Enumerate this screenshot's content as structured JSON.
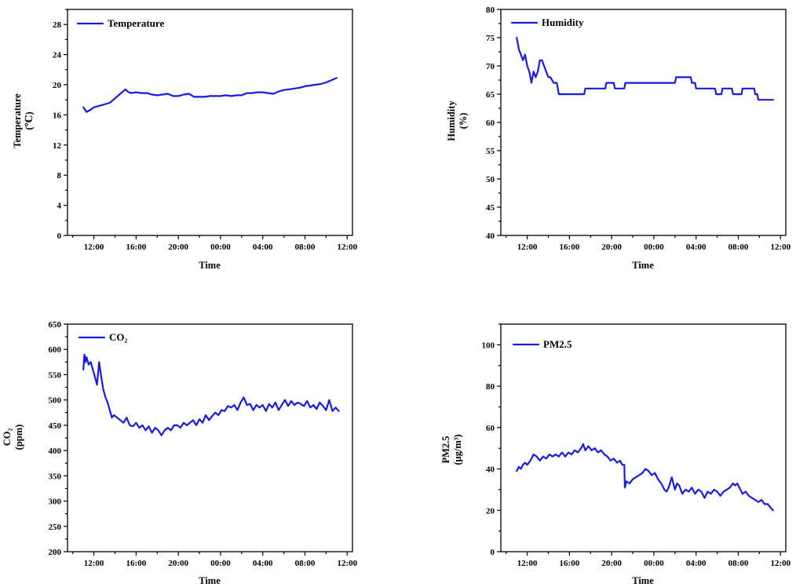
{
  "chart_data": [
    {
      "type": "line",
      "xlabel": "Time",
      "ylabel": [
        "Temperature",
        "(℃)"
      ],
      "ylim": [
        0,
        30
      ],
      "yticks": [
        0,
        4,
        8,
        12,
        16,
        20,
        24,
        28
      ],
      "xticks": [
        "12:00",
        "16:00",
        "20:00",
        "00:00",
        "04:00",
        "08:00",
        "12:00"
      ],
      "xlim": [
        9.5,
        36.5
      ],
      "legend": {
        "position": "top-left",
        "label": "Temperature"
      },
      "color": "#1a1ae6",
      "series": [
        {
          "name": "Temperature",
          "x": [
            11,
            11.3,
            11.6,
            12,
            12.5,
            13,
            13.5,
            14,
            14.5,
            15,
            15.2,
            15.5,
            16,
            16.5,
            17,
            17.5,
            18,
            18.5,
            19,
            19.5,
            20,
            20.5,
            21,
            21.5,
            22,
            22.5,
            23,
            23.5,
            24,
            24.5,
            25,
            25.5,
            26,
            26.5,
            27,
            27.5,
            28,
            28.5,
            29,
            29.5,
            30,
            30.5,
            31,
            31.5,
            32,
            32.5,
            33,
            33.5,
            34,
            34.5,
            35
          ],
          "y": [
            17.0,
            16.4,
            16.6,
            17.0,
            17.2,
            17.4,
            17.6,
            18.2,
            18.8,
            19.4,
            19.1,
            18.9,
            19.0,
            18.9,
            18.9,
            18.7,
            18.6,
            18.7,
            18.8,
            18.5,
            18.5,
            18.7,
            18.8,
            18.4,
            18.4,
            18.4,
            18.5,
            18.5,
            18.5,
            18.6,
            18.5,
            18.6,
            18.6,
            18.9,
            18.9,
            19.0,
            19.0,
            18.9,
            18.8,
            19.1,
            19.3,
            19.4,
            19.5,
            19.6,
            19.8,
            19.9,
            20.0,
            20.1,
            20.3,
            20.6,
            20.9
          ]
        }
      ]
    },
    {
      "type": "line",
      "xlabel": "Time",
      "ylabel": [
        "Humidity",
        "(%)"
      ],
      "ylim": [
        40,
        80
      ],
      "yticks": [
        40,
        45,
        50,
        55,
        60,
        65,
        70,
        75,
        80
      ],
      "xticks": [
        "12:00",
        "16:00",
        "20:00",
        "00:00",
        "04:00",
        "08:00",
        "12:00"
      ],
      "xlim": [
        9.5,
        36.5
      ],
      "legend": {
        "position": "top-left",
        "label": "Humidity"
      },
      "color": "#1a1ae6",
      "series": [
        {
          "name": "Humidity",
          "x": [
            11,
            11.2,
            11.4,
            11.6,
            11.8,
            12.0,
            12.2,
            12.4,
            12.6,
            12.8,
            13.0,
            13.2,
            13.4,
            13.6,
            13.8,
            14.0,
            14.2,
            14.5,
            14.8,
            15.0,
            15.2,
            17.4,
            17.5,
            19.4,
            19.5,
            20.2,
            20.3,
            21.2,
            21.3,
            26.0,
            26.1,
            26.2,
            26.3,
            27.5,
            27.6,
            27.9,
            28.0,
            28.5,
            28.6,
            28.9,
            29.0,
            29.8,
            29.9,
            30.4,
            30.5,
            31.3,
            31.4,
            31.5,
            31.8,
            31.9,
            32.3,
            32.4,
            33.5,
            33.6,
            33.8,
            33.9,
            34.6,
            34.7,
            35.3
          ],
          "y": [
            75,
            73,
            72,
            71,
            72,
            70,
            69,
            67,
            69,
            68,
            69,
            71,
            71,
            70,
            69,
            68,
            68,
            67,
            67,
            65,
            65,
            65,
            66,
            66,
            67,
            67,
            66,
            66,
            67,
            67,
            68,
            68,
            68,
            68,
            67,
            67,
            66,
            66,
            66,
            66,
            66,
            66,
            65,
            65,
            66,
            66,
            66,
            65,
            65,
            65,
            65,
            66,
            66,
            65,
            65,
            64,
            64,
            64,
            64
          ]
        }
      ]
    },
    {
      "type": "line",
      "xlabel": "Time",
      "ylabel": [
        "CO₂",
        "(ppm)"
      ],
      "ylim": [
        200,
        650
      ],
      "yticks": [
        200,
        250,
        300,
        350,
        400,
        450,
        500,
        550,
        600,
        650
      ],
      "xticks": [
        "12:00",
        "16:00",
        "20:00",
        "00:00",
        "04:00",
        "08:00",
        "12:00"
      ],
      "xlim": [
        9.5,
        36.5
      ],
      "legend": {
        "position": "top-left",
        "label": "CO₂"
      },
      "color": "#1a1ae6",
      "series": [
        {
          "name": "CO₂",
          "x": [
            11.0,
            11.1,
            11.2,
            11.3,
            11.5,
            11.7,
            11.9,
            12.1,
            12.3,
            12.5,
            12.7,
            12.9,
            13.1,
            13.3,
            13.5,
            13.7,
            13.9,
            14.2,
            14.5,
            14.8,
            15.1,
            15.4,
            15.7,
            16.0,
            16.3,
            16.6,
            16.9,
            17.2,
            17.5,
            17.8,
            18.1,
            18.4,
            18.7,
            19.0,
            19.3,
            19.6,
            19.9,
            20.2,
            20.5,
            20.8,
            21.1,
            21.4,
            21.7,
            22.0,
            22.3,
            22.6,
            22.9,
            23.2,
            23.5,
            23.8,
            24.1,
            24.4,
            24.7,
            25.0,
            25.3,
            25.6,
            25.9,
            26.2,
            26.5,
            26.8,
            27.1,
            27.4,
            27.7,
            28.0,
            28.3,
            28.6,
            28.9,
            29.2,
            29.5,
            29.8,
            30.1,
            30.4,
            30.7,
            31.0,
            31.3,
            31.6,
            31.9,
            32.2,
            32.5,
            32.8,
            33.1,
            33.4,
            33.7,
            34.0,
            34.3,
            34.6,
            34.9,
            35.2
          ],
          "y": [
            560,
            590,
            575,
            585,
            570,
            575,
            560,
            545,
            530,
            575,
            545,
            520,
            505,
            495,
            480,
            465,
            470,
            465,
            460,
            455,
            465,
            450,
            448,
            455,
            445,
            450,
            440,
            448,
            435,
            445,
            440,
            430,
            440,
            445,
            440,
            450,
            450,
            445,
            455,
            450,
            455,
            460,
            450,
            462,
            455,
            470,
            460,
            468,
            475,
            470,
            480,
            478,
            488,
            485,
            490,
            480,
            495,
            505,
            490,
            492,
            480,
            490,
            485,
            490,
            478,
            492,
            485,
            495,
            480,
            490,
            500,
            488,
            498,
            490,
            495,
            492,
            488,
            498,
            485,
            490,
            482,
            495,
            488,
            480,
            500,
            478,
            485,
            478
          ]
        }
      ]
    },
    {
      "type": "line",
      "xlabel": "Time",
      "ylabel": [
        "PM2.5",
        "(μg/m³)"
      ],
      "ylim": [
        0,
        110
      ],
      "yticks": [
        0,
        20,
        40,
        60,
        80,
        100
      ],
      "xticks": [
        "12:00",
        "16:00",
        "20:00",
        "00:00",
        "04:00",
        "08:00",
        "12:00"
      ],
      "xlim": [
        9.5,
        36.5
      ],
      "legend": {
        "position": "top-left",
        "label": "PM2.5"
      },
      "color": "#1a1ae6",
      "series": [
        {
          "name": "PM2.5",
          "x": [
            11.0,
            11.2,
            11.4,
            11.6,
            11.8,
            12.0,
            12.3,
            12.6,
            12.9,
            13.2,
            13.5,
            13.8,
            14.1,
            14.4,
            14.7,
            15.0,
            15.3,
            15.6,
            15.9,
            16.2,
            16.5,
            16.8,
            17.1,
            17.3,
            17.5,
            17.8,
            18.1,
            18.4,
            18.7,
            19.0,
            19.3,
            19.6,
            19.9,
            20.2,
            20.5,
            20.8,
            21.0,
            21.2,
            21.25,
            21.4,
            21.7,
            22.0,
            22.3,
            22.6,
            22.9,
            23.2,
            23.5,
            23.8,
            24.1,
            24.4,
            24.7,
            25.0,
            25.2,
            25.4,
            25.7,
            26.0,
            26.2,
            26.4,
            26.7,
            27.0,
            27.3,
            27.6,
            27.9,
            28.2,
            28.5,
            28.8,
            29.1,
            29.4,
            29.7,
            30.0,
            30.3,
            30.6,
            30.9,
            31.2,
            31.5,
            31.7,
            31.9,
            32.1,
            32.4,
            32.7,
            33.0,
            33.3,
            33.6,
            33.9,
            34.2,
            34.5,
            34.8,
            35.1,
            35.3
          ],
          "y": [
            39,
            41,
            40,
            42,
            43,
            42,
            44,
            47,
            46,
            44,
            46,
            45,
            47,
            46,
            47,
            46,
            48,
            46,
            48,
            47,
            49,
            48,
            50,
            52,
            49,
            51,
            49,
            50,
            48,
            49,
            47,
            46,
            44,
            45,
            43,
            44,
            42,
            42,
            31,
            34,
            33,
            35,
            36,
            37,
            38,
            40,
            39,
            37,
            38,
            35,
            33,
            30,
            29,
            31,
            36,
            30,
            33,
            32,
            28,
            30,
            29,
            31,
            28,
            30,
            29,
            26,
            29,
            28,
            30,
            29,
            27,
            29,
            30,
            31,
            33,
            32,
            33,
            31,
            28,
            29,
            27,
            26,
            25,
            24,
            25,
            23,
            23,
            21,
            20
          ]
        }
      ]
    }
  ]
}
